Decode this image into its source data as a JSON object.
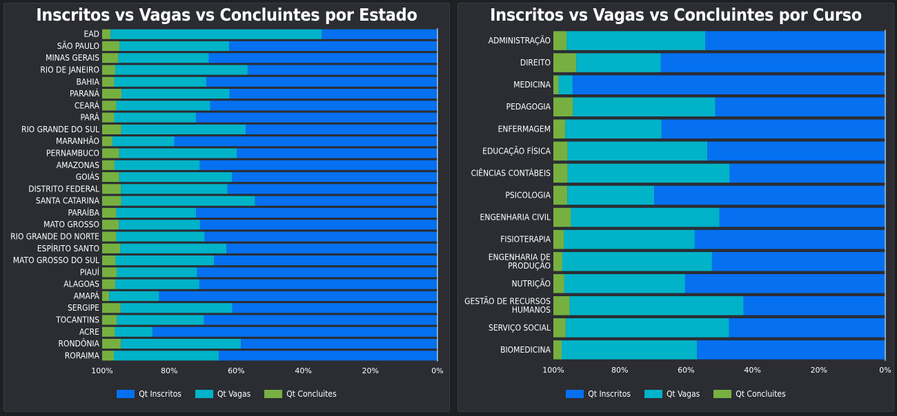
{
  "legend": [
    "Qt Inscritos",
    "Qt Vagas",
    "Qt Concluites"
  ],
  "colors": {
    "inscritos": "#0570f0",
    "vagas": "#00b3c8",
    "concluintes": "#77b041"
  },
  "chart_data": [
    {
      "type": "bar",
      "orientation": "horizontal-stacked-100",
      "title": "Inscritos vs Vagas vs Concluintes por Estado",
      "x_axis_reversed": true,
      "x_ticks": [
        "100%",
        "80%",
        "60%",
        "40%",
        "20%",
        "0%"
      ],
      "categories": [
        "EAD",
        "SÃO PAULO",
        "MINAS GERAIS",
        "RIO DE JANEIRO",
        "BAHIA",
        "PARANÁ",
        "CEARÁ",
        "PARÁ",
        "RIO GRANDE DO SUL",
        "MARANHÃO",
        "PERNAMBUCO",
        "AMAZONAS",
        "GOIÁS",
        "DISTRITO FEDERAL",
        "SANTA CATARINA",
        "PARAÍBA",
        "MATO GROSSO",
        "RIO GRANDE DO NORTE",
        "ESPÍRITO SANTO",
        "MATO GROSSO DO SUL",
        "PIAUÍ",
        "ALAGOAS",
        "AMAPÁ",
        "SERGIPE",
        "TOCANTINS",
        "ACRE",
        "RONDÔNIA",
        "RORAIMA"
      ],
      "series": [
        {
          "name": "Qt Inscritos",
          "values": [
            34.5,
            62.1,
            68.2,
            56.6,
            68.9,
            62.0,
            67.8,
            72.0,
            57.2,
            78.5,
            59.8,
            70.9,
            61.3,
            62.6,
            54.4,
            72.0,
            70.8,
            69.4,
            62.9,
            66.6,
            71.7,
            71.0,
            83.0,
            61.2,
            69.6,
            85.0,
            58.6,
            65.2
          ]
        },
        {
          "name": "Qt Vagas",
          "values": [
            63.0,
            32.7,
            27.0,
            39.5,
            27.5,
            32.2,
            28.0,
            24.4,
            37.1,
            18.4,
            35.1,
            25.4,
            33.6,
            31.8,
            39.9,
            23.8,
            24.2,
            26.4,
            31.7,
            29.4,
            23.9,
            25.1,
            14.9,
            33.3,
            26.0,
            11.2,
            35.8,
            31.3
          ]
        },
        {
          "name": "Qt Concluites",
          "values": [
            2.5,
            5.2,
            4.8,
            3.9,
            3.6,
            5.8,
            4.2,
            3.6,
            5.7,
            3.1,
            5.1,
            3.7,
            5.1,
            5.6,
            5.7,
            4.2,
            5.0,
            4.2,
            5.4,
            4.0,
            4.4,
            3.9,
            2.1,
            5.5,
            4.4,
            3.8,
            5.6,
            3.5
          ]
        }
      ]
    },
    {
      "type": "bar",
      "orientation": "horizontal-stacked-100",
      "title": "Inscritos vs Vagas vs Concluintes por Curso",
      "x_axis_reversed": true,
      "x_ticks": [
        "100%",
        "80%",
        "60%",
        "40%",
        "20%",
        "0%"
      ],
      "categories": [
        [
          "ADMINISTRAÇÃO"
        ],
        [
          "DIREITO"
        ],
        [
          "MEDICINA"
        ],
        [
          "PEDAGOGIA"
        ],
        [
          "ENFERMAGEM"
        ],
        [
          "EDUCAÇÃO FÍSICA"
        ],
        [
          "CIÊNCIAS CONTÁBEIS"
        ],
        [
          "PSICOLOGIA"
        ],
        [
          "ENGENHARIA CIVIL"
        ],
        [
          "FISIOTERAPIA"
        ],
        [
          "ENGENHARIA DE",
          "PRODUÇÃO"
        ],
        [
          "NUTRIÇÃO"
        ],
        [
          "GESTÃO DE RECURSOS",
          "HUMANOS"
        ],
        [
          "SERVIÇO SOCIAL"
        ],
        [
          "BIOMEDICINA"
        ]
      ],
      "series": [
        {
          "name": "Qt Inscritos",
          "values": [
            54.2,
            67.6,
            94.2,
            51.2,
            67.4,
            53.6,
            46.9,
            69.6,
            50.0,
            57.4,
            52.2,
            60.3,
            42.7,
            47.1,
            56.7
          ]
        },
        {
          "name": "Qt Vagas",
          "values": [
            41.8,
            25.5,
            4.2,
            42.9,
            29.0,
            42.1,
            48.8,
            26.2,
            44.7,
            39.4,
            45.1,
            36.4,
            52.4,
            49.2,
            40.8
          ]
        },
        {
          "name": "Qt Concluites",
          "values": [
            4.0,
            6.9,
            1.6,
            5.9,
            3.6,
            4.3,
            4.3,
            4.2,
            5.3,
            3.2,
            2.7,
            3.3,
            4.9,
            3.7,
            2.5
          ]
        }
      ]
    }
  ]
}
